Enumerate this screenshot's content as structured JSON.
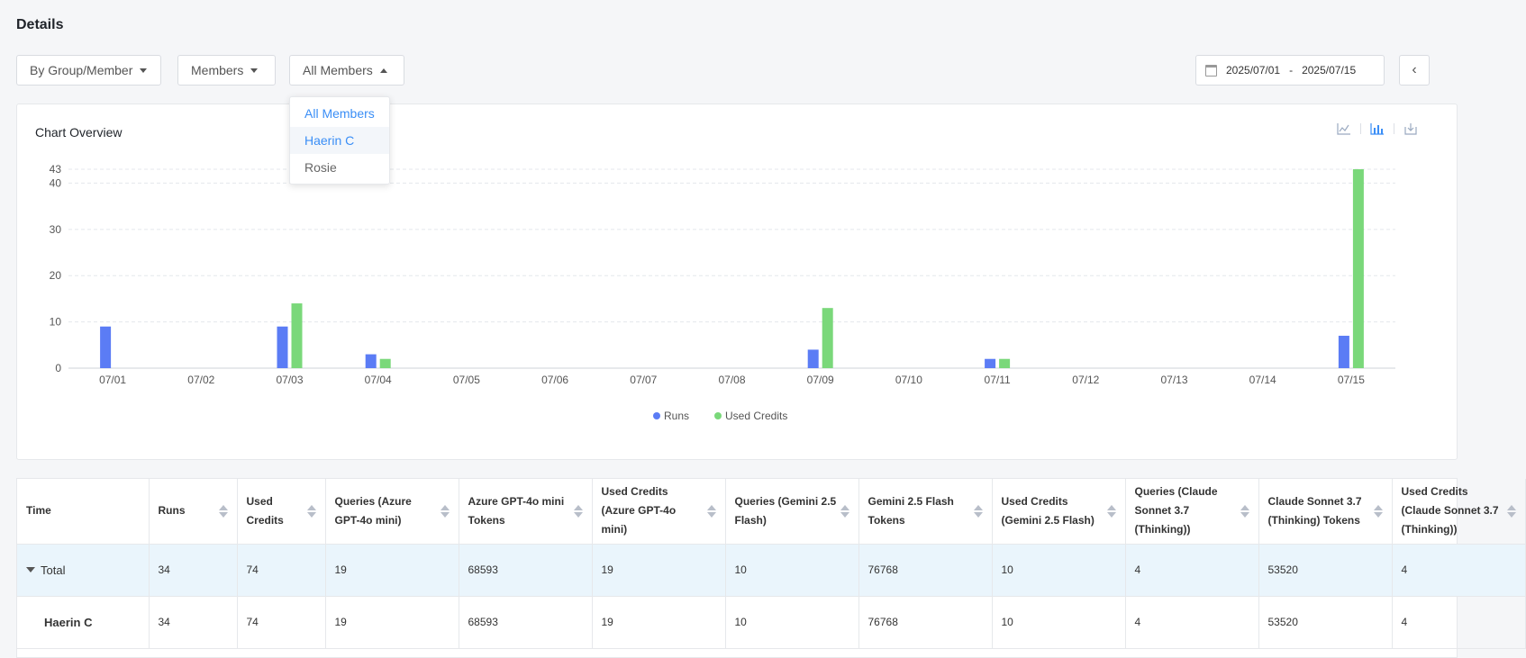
{
  "page": {
    "title": "Details"
  },
  "filters": {
    "group_mode": "By Group/Member",
    "level": "Members",
    "member": "All Members"
  },
  "member_dropdown": {
    "options": [
      "All Members",
      "Haerin C",
      "Rosie"
    ],
    "selected": "All Members",
    "hovered": "Haerin C"
  },
  "date_range": {
    "start": "2025/07/01",
    "separator": "-",
    "end": "2025/07/15"
  },
  "chart_card": {
    "title": "Chart Overview",
    "icons": [
      "line-chart-icon",
      "bar-chart-icon",
      "download-icon"
    ]
  },
  "colors": {
    "runs": "#5b7cf5",
    "used_credits": "#7ad87a",
    "accent": "#3a8ef6"
  },
  "chart_data": {
    "type": "bar",
    "categories": [
      "07/01",
      "07/02",
      "07/03",
      "07/04",
      "07/05",
      "07/06",
      "07/07",
      "07/08",
      "07/09",
      "07/10",
      "07/11",
      "07/12",
      "07/13",
      "07/14",
      "07/15"
    ],
    "series": [
      {
        "name": "Runs",
        "values": [
          9,
          0,
          9,
          3,
          0,
          0,
          0,
          0,
          4,
          0,
          2,
          0,
          0,
          0,
          7
        ]
      },
      {
        "name": "Used Credits",
        "values": [
          0,
          0,
          14,
          2,
          0,
          0,
          0,
          0,
          13,
          0,
          2,
          0,
          0,
          0,
          43
        ]
      }
    ],
    "yticks": [
      0,
      10,
      20,
      30,
      40,
      43
    ],
    "ylim": [
      0,
      43
    ],
    "grid": true,
    "legend": "bottom-center"
  },
  "table": {
    "columns": [
      "Time",
      "Runs",
      "Used Credits",
      "Queries (Azure GPT-4o mini)",
      "Azure GPT-4o mini Tokens",
      "Used Credits (Azure GPT-4o mini)",
      "Queries (Gemini 2.5 Flash)",
      "Gemini 2.5 Flash Tokens",
      "Used Credits (Gemini 2.5 Flash)",
      "Queries (Claude Sonnet 3.7 (Thinking))",
      "Claude Sonnet 3.7 (Thinking) Tokens",
      "Used Credits (Claude Sonnet 3.7 (Thinking))"
    ],
    "rows": [
      {
        "label": "Total",
        "values": [
          "34",
          "74",
          "19",
          "68593",
          "19",
          "10",
          "76768",
          "10",
          "4",
          "53520",
          "4"
        ]
      },
      {
        "label": "Haerin C",
        "values": [
          "34",
          "74",
          "19",
          "68593",
          "19",
          "10",
          "76768",
          "10",
          "4",
          "53520",
          "4"
        ]
      }
    ]
  }
}
